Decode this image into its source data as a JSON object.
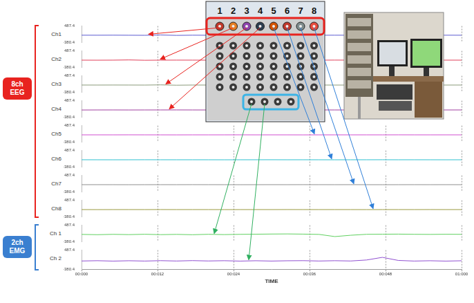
{
  "chart_data": {
    "type": "line",
    "x": [
      0,
      2.5,
      5,
      7.5,
      10,
      12.5,
      15,
      17.5,
      20,
      22.5,
      25,
      27.5,
      30,
      32.5,
      35,
      37.5,
      40,
      42.5,
      45,
      47.5,
      50,
      52.5,
      55,
      57.5,
      60
    ],
    "xlim": [
      0,
      60
    ],
    "xticks": [
      {
        "value": 0,
        "label": "00:000"
      },
      {
        "value": 12,
        "label": "00:012"
      },
      {
        "value": 24,
        "label": "00:024"
      },
      {
        "value": 36,
        "label": "00:036"
      },
      {
        "value": 48,
        "label": "00:048"
      },
      {
        "value": 60,
        "label": "01:000"
      }
    ],
    "x_label": "TIME",
    "ylim": [
      -380.4,
      487.4
    ],
    "yticks": [
      -380.4,
      487.4
    ],
    "grid": true,
    "series": [
      {
        "name": "Ch1",
        "color": "#5a5ad0",
        "values": [
          3,
          2,
          4,
          1,
          -2,
          14,
          -6,
          3,
          1,
          2,
          0,
          3,
          2,
          4,
          2,
          1,
          3,
          2,
          0,
          2,
          3,
          1,
          2,
          3,
          2
        ]
      },
      {
        "name": "Ch2",
        "color": "#e0405a",
        "values": [
          0,
          -2,
          1,
          12,
          -6,
          0,
          2,
          1,
          -1,
          0,
          2,
          1,
          0,
          -2,
          1,
          0,
          3,
          1,
          0,
          -1,
          1,
          2,
          0,
          1,
          0
        ]
      },
      {
        "name": "Ch3",
        "color": "#8a9a7a",
        "values": [
          1,
          0,
          2,
          1,
          -1,
          10,
          -8,
          1,
          0,
          2,
          1,
          0,
          1,
          2,
          0,
          1,
          -1,
          0,
          2,
          1,
          0,
          1,
          2,
          0,
          1
        ]
      },
      {
        "name": "Ch4",
        "color": "#a040a0",
        "values": [
          -2,
          0,
          1,
          -1,
          0,
          1,
          2,
          0,
          -1,
          0,
          1,
          0,
          8,
          -5,
          0,
          1,
          0,
          -1,
          0,
          2,
          1,
          0,
          -1,
          0,
          1
        ]
      },
      {
        "name": "Ch5",
        "color": "#d050d0",
        "values": [
          0,
          1,
          0,
          2,
          1,
          0,
          -1,
          1,
          0,
          1,
          2,
          0,
          1,
          0,
          -1,
          0,
          1,
          0,
          1,
          0,
          2,
          1,
          0,
          1,
          0
        ]
      },
      {
        "name": "Ch6",
        "color": "#30c0d0",
        "values": [
          1,
          0,
          -1,
          0,
          2,
          1,
          0,
          1,
          0,
          -1,
          0,
          1,
          2,
          0,
          1,
          0,
          -1,
          0,
          1,
          2,
          0,
          1,
          0,
          -1,
          0
        ]
      },
      {
        "name": "Ch7",
        "color": "#909090",
        "values": [
          0,
          1,
          0,
          -1,
          0,
          1,
          0,
          2,
          1,
          0,
          -1,
          0,
          1,
          0,
          2,
          1,
          0,
          1,
          0,
          -1,
          0,
          1,
          0,
          1,
          0
        ]
      },
      {
        "name": "Ch8",
        "color": "#9a9a40",
        "values": [
          0,
          -1,
          0,
          1,
          0,
          2,
          0,
          1,
          0,
          -1,
          0,
          1,
          0,
          2,
          1,
          0,
          1,
          0,
          -1,
          0,
          1,
          0,
          2,
          0,
          1
        ]
      },
      {
        "name": "Ch 1",
        "color": "#60d060",
        "values": [
          5,
          -10,
          8,
          -6,
          12,
          -8,
          6,
          -12,
          10,
          -5,
          8,
          15,
          25,
          30,
          20,
          5,
          -110,
          -40,
          10,
          15,
          20,
          10,
          5,
          12,
          8
        ]
      },
      {
        "name": "Ch 2",
        "color": "#9050d0",
        "values": [
          -5,
          8,
          -10,
          6,
          -8,
          10,
          -6,
          12,
          -4,
          8,
          -10,
          6,
          -8,
          5,
          10,
          -6,
          8,
          -5,
          40,
          160,
          20,
          -8,
          6,
          -10,
          5
        ]
      }
    ]
  },
  "groups": [
    {
      "label": "8ch EEG",
      "color": "#e8231f",
      "series": [
        "Ch1",
        "Ch2",
        "Ch3",
        "Ch4",
        "Ch5",
        "Ch6",
        "Ch7",
        "Ch8"
      ]
    },
    {
      "label": "2ch EMG",
      "color": "#3a7fd0",
      "series": [
        "Ch 1",
        "Ch 2"
      ]
    }
  ],
  "electrode_board": {
    "numbers": [
      1,
      2,
      3,
      4,
      5,
      6,
      7,
      8
    ]
  }
}
